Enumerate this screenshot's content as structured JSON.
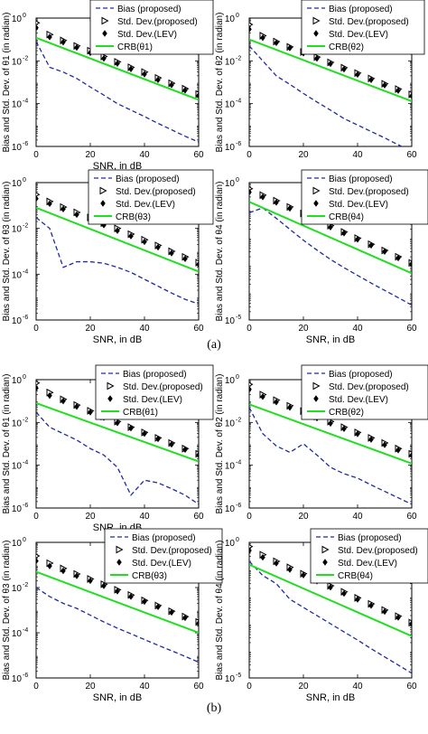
{
  "figure": {
    "caption_a": "(a)",
    "caption_b": "(b)"
  },
  "colors": {
    "bias": "#1f2a9c",
    "crb": "#22dd22",
    "std": "#000000"
  },
  "chart_data": [
    {
      "id": "a1",
      "type": "line",
      "scale_y": "log",
      "xlabel": "SNR, in dB",
      "ylabel": "Bias and Std. Dev. of θ1 (in radian)",
      "xlim": [
        0,
        60
      ],
      "ylim_exp": [
        -6,
        0
      ],
      "xticks": [
        0,
        20,
        40,
        60
      ],
      "yticks_exp": [
        -6,
        -4,
        -2,
        0
      ],
      "legend": [
        "Bias (proposed)",
        "Std. Dev.(proposed)",
        "Std. Dev.(LEV)",
        "CRB(θ1)"
      ],
      "legend_position": "top-right",
      "series": [
        {
          "key": "bias",
          "x": [
            0,
            5,
            10,
            15,
            20,
            25,
            30,
            35,
            40,
            45,
            50,
            55,
            60
          ],
          "y": [
            0.08,
            0.005,
            0.003,
            0.0015,
            0.0006,
            0.00025,
            0.0001,
            5e-05,
            2.5e-05,
            1.2e-05,
            6e-06,
            3e-06,
            1.6e-06
          ]
        },
        {
          "key": "stdp",
          "x": [
            0,
            5,
            10,
            15,
            20,
            25,
            30,
            35,
            40,
            45,
            50,
            55,
            60
          ],
          "y": [
            0.6,
            0.17,
            0.09,
            0.05,
            0.03,
            0.016,
            0.009,
            0.005,
            0.003,
            0.0016,
            0.0009,
            0.0005,
            0.00028
          ]
        },
        {
          "key": "stdl",
          "x": [
            0,
            5,
            10,
            15,
            20,
            25,
            30,
            35,
            40,
            45,
            50,
            55,
            60
          ],
          "y": [
            0.35,
            0.13,
            0.075,
            0.042,
            0.024,
            0.013,
            0.0075,
            0.0042,
            0.0024,
            0.0013,
            0.00075,
            0.00042,
            0.00024
          ]
        },
        {
          "key": "crb",
          "x": [
            0,
            60
          ],
          "y": [
            0.12,
            0.00015
          ]
        }
      ]
    },
    {
      "id": "a2",
      "type": "line",
      "scale_y": "log",
      "xlabel": "",
      "ylabel": "Bias and Std. Dev. of θ2 (in radian)",
      "xlim": [
        0,
        60
      ],
      "ylim_exp": [
        -6,
        0
      ],
      "xticks": [
        0,
        20,
        40,
        60
      ],
      "yticks_exp": [
        -6,
        -4,
        -2,
        0
      ],
      "legend": [
        "Bias (proposed)",
        "Std. Dev.(proposed)",
        "Std. Dev.(LEV)",
        "CRB(θ2)"
      ],
      "legend_position": "top-right",
      "series": [
        {
          "key": "bias",
          "x": [
            0,
            5,
            10,
            15,
            20,
            25,
            30,
            35,
            40,
            45,
            50,
            55,
            60
          ],
          "y": [
            0.05,
            0.01,
            0.002,
            0.0008,
            0.0003,
            0.00012,
            5e-05,
            2e-05,
            1e-05,
            5e-06,
            2.5e-06,
            1.2e-06,
            6e-07
          ]
        },
        {
          "key": "stdp",
          "x": [
            0,
            5,
            10,
            15,
            20,
            25,
            30,
            35,
            40,
            45,
            50,
            55,
            60
          ],
          "y": [
            0.5,
            0.15,
            0.08,
            0.045,
            0.026,
            0.015,
            0.0085,
            0.0048,
            0.0027,
            0.0015,
            0.00085,
            0.00048,
            0.00027
          ]
        },
        {
          "key": "stdl",
          "x": [
            0,
            5,
            10,
            15,
            20,
            25,
            30,
            35,
            40,
            45,
            50,
            55,
            60
          ],
          "y": [
            0.3,
            0.12,
            0.07,
            0.04,
            0.023,
            0.013,
            0.0073,
            0.0041,
            0.0023,
            0.0013,
            0.00073,
            0.00041,
            0.00023
          ]
        },
        {
          "key": "crb",
          "x": [
            0,
            60
          ],
          "y": [
            0.1,
            0.00013
          ]
        }
      ]
    },
    {
      "id": "a3",
      "type": "line",
      "scale_y": "log",
      "xlabel": "SNR, in dB",
      "ylabel": "Bias and Std. Dev. of θ3 (in radian)",
      "xlim": [
        0,
        60
      ],
      "ylim_exp": [
        -6,
        0
      ],
      "xticks": [
        0,
        20,
        40,
        60
      ],
      "yticks_exp": [
        -6,
        -4,
        -2,
        0
      ],
      "legend": [
        "Bias (proposed)",
        "Std. Dev.(proposed)",
        "Std. Dev.(LEV)",
        "CRB(θ3)"
      ],
      "legend_position": "top-right",
      "series": [
        {
          "key": "bias",
          "x": [
            0,
            5,
            10,
            15,
            20,
            25,
            30,
            35,
            40,
            45,
            50,
            55,
            60
          ],
          "y": [
            0.03,
            0.01,
            0.0002,
            0.00035,
            0.00035,
            0.0003,
            0.0002,
            0.00012,
            6e-05,
            3e-05,
            1.5e-05,
            8e-06,
            5e-06
          ]
        },
        {
          "key": "stdp",
          "x": [
            0,
            5,
            10,
            15,
            20,
            25,
            30,
            35,
            40,
            45,
            50,
            55,
            60
          ],
          "y": [
            0.3,
            0.15,
            0.085,
            0.05,
            0.03,
            0.017,
            0.01,
            0.0056,
            0.0032,
            0.0018,
            0.001,
            0.00057,
            0.00032
          ]
        },
        {
          "key": "stdl",
          "x": [
            0,
            5,
            10,
            15,
            20,
            25,
            30,
            35,
            40,
            45,
            50,
            55,
            60
          ],
          "y": [
            0.2,
            0.12,
            0.07,
            0.04,
            0.024,
            0.014,
            0.008,
            0.0046,
            0.0026,
            0.0015,
            0.00083,
            0.00047,
            0.00027
          ]
        },
        {
          "key": "crb",
          "x": [
            0,
            60
          ],
          "y": [
            0.08,
            0.00013
          ]
        }
      ]
    },
    {
      "id": "a4",
      "type": "line",
      "scale_y": "log",
      "xlabel": "SNR, in dB",
      "ylabel": "Bias and Std. Dev. of θ4 (in radian)",
      "xlim": [
        0,
        60
      ],
      "ylim_exp": [
        -5,
        0
      ],
      "xticks": [
        0,
        20,
        40,
        60
      ],
      "yticks_exp": [
        -5,
        0
      ],
      "legend": [
        "Bias (proposed)",
        "Std. Dev.(proposed)",
        "Std. Dev.(LEV)",
        "CRB(θ4)"
      ],
      "legend_position": "top-right",
      "series": [
        {
          "key": "bias",
          "x": [
            0,
            5,
            10,
            15,
            20,
            25,
            30,
            35,
            40,
            45,
            50,
            55,
            60
          ],
          "y": [
            0.08,
            0.12,
            0.05,
            0.02,
            0.008,
            0.0035,
            0.0016,
            0.0008,
            0.00042,
            0.00022,
            0.00012,
            6.5e-05,
            3.5e-05
          ]
        },
        {
          "key": "stdp",
          "x": [
            0,
            5,
            10,
            15,
            20,
            25,
            30,
            35,
            40,
            45,
            50,
            55,
            60
          ],
          "y": [
            0.6,
            0.35,
            0.22,
            0.13,
            0.075,
            0.045,
            0.027,
            0.016,
            0.0095,
            0.0057,
            0.0034,
            0.002,
            0.0012
          ]
        },
        {
          "key": "stdl",
          "x": [
            0,
            5,
            10,
            15,
            20,
            25,
            30,
            35,
            40,
            45,
            50,
            55,
            60
          ],
          "y": [
            0.45,
            0.3,
            0.19,
            0.115,
            0.068,
            0.04,
            0.024,
            0.0145,
            0.0086,
            0.0052,
            0.0031,
            0.0018,
            0.0011
          ]
        },
        {
          "key": "crb",
          "x": [
            0,
            60
          ],
          "y": [
            0.2,
            0.0005
          ]
        }
      ]
    },
    {
      "id": "b1",
      "type": "line",
      "scale_y": "log",
      "xlabel": "SNR, in dB",
      "ylabel": "Bias and Std. Dev. of θ1 (in radian)",
      "xlim": [
        0,
        60
      ],
      "ylim_exp": [
        -6,
        0
      ],
      "xticks": [
        0,
        20,
        40,
        60
      ],
      "yticks_exp": [
        -6,
        -4,
        -2,
        0
      ],
      "legend": [
        "Bias (proposed)",
        "Std. Dev.(proposed)",
        "Std. Dev.(LEV)",
        "CRB(θ1)"
      ],
      "legend_position": "top-right",
      "series": [
        {
          "key": "bias",
          "x": [
            0,
            5,
            10,
            15,
            20,
            25,
            30,
            35,
            40,
            45,
            50,
            55,
            60
          ],
          "y": [
            0.03,
            0.006,
            0.003,
            0.0015,
            0.0006,
            0.0003,
            8e-05,
            4e-06,
            2e-05,
            1.5e-05,
            8e-06,
            4e-06,
            1.5e-06
          ]
        },
        {
          "key": "stdp",
          "x": [
            0,
            5,
            10,
            15,
            20,
            25,
            30,
            35,
            40,
            45,
            50,
            55,
            60
          ],
          "y": [
            0.7,
            0.25,
            0.12,
            0.065,
            0.035,
            0.019,
            0.011,
            0.006,
            0.0034,
            0.0019,
            0.0011,
            0.0006,
            0.00034
          ]
        },
        {
          "key": "stdl",
          "x": [
            0,
            5,
            10,
            15,
            20,
            25,
            30,
            35,
            40,
            45,
            50,
            55,
            60
          ],
          "y": [
            0.4,
            0.18,
            0.1,
            0.055,
            0.03,
            0.017,
            0.0095,
            0.0054,
            0.003,
            0.0017,
            0.00095,
            0.00054,
            0.0003
          ]
        },
        {
          "key": "crb",
          "x": [
            0,
            60
          ],
          "y": [
            0.08,
            0.00015
          ]
        }
      ]
    },
    {
      "id": "b2",
      "type": "line",
      "scale_y": "log",
      "xlabel": "",
      "ylabel": "Bias and Std. Dev. of θ2 (in radian)",
      "xlim": [
        0,
        60
      ],
      "ylim_exp": [
        -6,
        0
      ],
      "xticks": [
        0,
        20,
        40,
        60
      ],
      "yticks_exp": [
        -6,
        -4,
        -2,
        0
      ],
      "legend": [
        "Bias (proposed)",
        "Std. Dev.(proposed)",
        "Std. Dev.(LEV)",
        "CRB(θ2)"
      ],
      "legend_position": "top-right",
      "series": [
        {
          "key": "bias",
          "x": [
            0,
            5,
            10,
            15,
            20,
            25,
            30,
            35,
            40,
            45,
            50,
            55,
            60
          ],
          "y": [
            0.05,
            0.003,
            0.0008,
            0.0004,
            0.001,
            0.0003,
            8e-05,
            4e-05,
            2.5e-05,
            1.2e-05,
            6e-06,
            3e-06,
            1.5e-06
          ]
        },
        {
          "key": "stdp",
          "x": [
            0,
            5,
            10,
            15,
            20,
            25,
            30,
            35,
            40,
            45,
            50,
            55,
            60
          ],
          "y": [
            0.6,
            0.2,
            0.11,
            0.06,
            0.034,
            0.019,
            0.011,
            0.006,
            0.0034,
            0.0019,
            0.0011,
            0.0006,
            0.00034
          ]
        },
        {
          "key": "stdl",
          "x": [
            0,
            5,
            10,
            15,
            20,
            25,
            30,
            35,
            40,
            45,
            50,
            55,
            60
          ],
          "y": [
            0.35,
            0.16,
            0.09,
            0.05,
            0.029,
            0.016,
            0.009,
            0.0051,
            0.0029,
            0.0016,
            0.0009,
            0.00051,
            0.00029
          ]
        },
        {
          "key": "crb",
          "x": [
            0,
            60
          ],
          "y": [
            0.07,
            0.00012
          ]
        }
      ]
    },
    {
      "id": "b3",
      "type": "line",
      "scale_y": "log",
      "xlabel": "SNR, in dB",
      "ylabel": "Bias and Std. Dev. of θ3 (in radian)",
      "xlim": [
        0,
        60
      ],
      "ylim_exp": [
        -6,
        0
      ],
      "xticks": [
        0,
        20,
        40,
        60
      ],
      "yticks_exp": [
        -6,
        -4,
        -2,
        0
      ],
      "legend": [
        "Bias (proposed)",
        "Std. Dev.(proposed)",
        "Std. Dev.(LEV)",
        "CRB(θ3)"
      ],
      "legend_position": "top-right",
      "series": [
        {
          "key": "bias",
          "x": [
            0,
            5,
            10,
            15,
            20,
            25,
            30,
            35,
            40,
            45,
            50,
            55,
            60
          ],
          "y": [
            0.01,
            0.004,
            0.002,
            0.0012,
            0.0006,
            0.0003,
            0.00016,
            9e-05,
            5e-05,
            2.8e-05,
            1.6e-05,
            9e-06,
            5e-06
          ]
        },
        {
          "key": "stdp",
          "x": [
            0,
            5,
            10,
            15,
            20,
            25,
            30,
            35,
            40,
            45,
            50,
            55,
            60
          ],
          "y": [
            0.25,
            0.12,
            0.07,
            0.04,
            0.024,
            0.014,
            0.008,
            0.0047,
            0.0027,
            0.0016,
            0.0009,
            0.00052,
            0.0003
          ]
        },
        {
          "key": "stdl",
          "x": [
            0,
            5,
            10,
            15,
            20,
            25,
            30,
            35,
            40,
            45,
            50,
            55,
            60
          ],
          "y": [
            0.15,
            0.09,
            0.055,
            0.033,
            0.02,
            0.012,
            0.0069,
            0.004,
            0.0024,
            0.0014,
            0.0008,
            0.00046,
            0.00026
          ]
        },
        {
          "key": "crb",
          "x": [
            0,
            60
          ],
          "y": [
            0.05,
            0.0001
          ]
        }
      ]
    },
    {
      "id": "b4",
      "type": "line",
      "scale_y": "log",
      "xlabel": "SNR, in dB",
      "ylabel": "Bias and Std. Dev. of θ4 (in radian)",
      "xlim": [
        0,
        60
      ],
      "ylim_exp": [
        -5,
        0
      ],
      "xticks": [
        0,
        20,
        40,
        60
      ],
      "yticks_exp": [
        -5,
        0
      ],
      "legend": [
        "Bias (proposed)",
        "Std. Dev.(proposed)",
        "Std. Dev.(LEV)",
        "CRB(θ4)"
      ],
      "legend_position": "top-right",
      "series": [
        {
          "key": "bias",
          "x": [
            0,
            5,
            10,
            15,
            20,
            25,
            30,
            35,
            40,
            45,
            50,
            55,
            60
          ],
          "y": [
            0.2,
            0.06,
            0.03,
            0.008,
            0.004,
            0.002,
            0.001,
            0.0005,
            0.00025,
            0.00012,
            6e-05,
            3e-05,
            1.5e-05
          ]
        },
        {
          "key": "stdp",
          "x": [
            0,
            5,
            10,
            15,
            20,
            25,
            30,
            35,
            40,
            45,
            50,
            55,
            60
          ],
          "y": [
            0.7,
            0.35,
            0.2,
            0.12,
            0.07,
            0.042,
            0.025,
            0.015,
            0.009,
            0.0054,
            0.0032,
            0.0019,
            0.0011
          ]
        },
        {
          "key": "stdl",
          "x": [
            0,
            5,
            10,
            15,
            20,
            25,
            30,
            35,
            40,
            45,
            50,
            55,
            60
          ],
          "y": [
            0.5,
            0.28,
            0.17,
            0.1,
            0.062,
            0.037,
            0.022,
            0.013,
            0.0079,
            0.0047,
            0.0028,
            0.0017,
            0.001
          ]
        },
        {
          "key": "crb",
          "x": [
            0,
            60
          ],
          "y": [
            0.15,
            0.00035
          ]
        }
      ]
    }
  ]
}
